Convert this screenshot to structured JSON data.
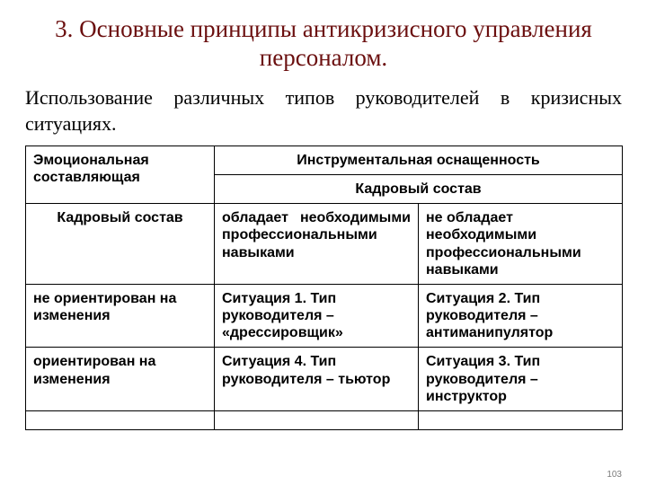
{
  "title": "3. Основные принципы антикризисного управления персоналом.",
  "subtitle_line1": "Использование различных типов руководителей в кризисных",
  "subtitle_line2": "ситуациях.",
  "table": {
    "header_emotional": "Эмоциональная составляющая",
    "header_instrumental": "Инструментальная оснащенность",
    "header_staff_top": "Кадровый состав",
    "header_staff_left": "Кадровый состав",
    "sub_col1_w1": "обладает",
    "sub_col1_w2": "необходимыми",
    "sub_col1_rest": "профессиональными навыками",
    "sub_col2": "не обладает необходимыми профессиональными навыками",
    "row1_label": "не ориентирован на изменения",
    "row1_cell1": "Ситуация 1. Тип руководителя – «дрессировщик»",
    "row1_cell2": "Ситуация 2. Тип руководителя – антиманипулятор",
    "row2_label": "ориентирован на изменения",
    "row2_cell1": "Ситуация 4. Тип руководителя – тьютор",
    "row2_cell2": "Ситуация 3. Тип руководителя – инструктор"
  },
  "page_number": "103",
  "colors": {
    "title_color": "#6b0f0f",
    "text_color": "#000000",
    "border_color": "#000000",
    "background": "#ffffff"
  }
}
